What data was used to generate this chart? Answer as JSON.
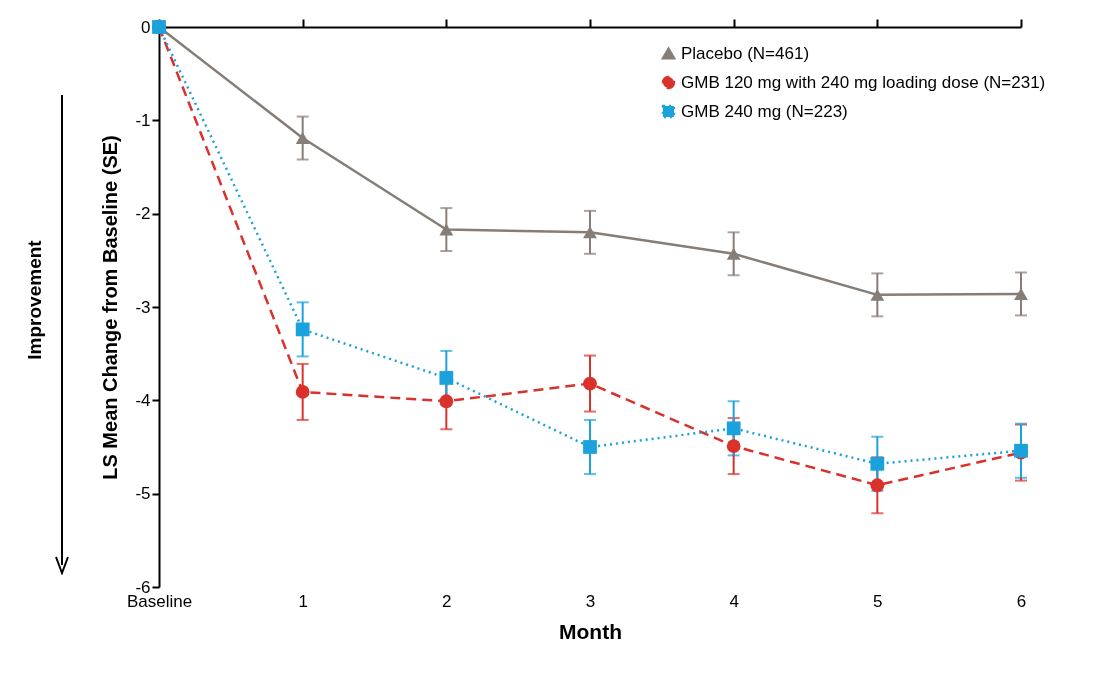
{
  "chart_data": {
    "type": "line",
    "xlabel": "Month",
    "ylabel": "LS Mean Change from Baseline (SE)",
    "categories": [
      "Baseline",
      "1",
      "2",
      "3",
      "4",
      "5",
      "6"
    ],
    "series": [
      {
        "name": "Placebo (N=461)",
        "color": "#857d76",
        "marker": "triangle",
        "line_style": "solid",
        "values": [
          0,
          -1.19,
          -2.17,
          -2.2,
          -2.43,
          -2.87,
          -2.86
        ],
        "errors": [
          null,
          0.23,
          0.23,
          0.23,
          0.23,
          0.23,
          0.23
        ]
      },
      {
        "name": "GMB 120 mg with 240 mg loading dose (N=231)",
        "color": "#d9312b",
        "marker": "circle",
        "line_style": "dashed",
        "values": [
          0,
          -3.91,
          -4.01,
          -3.82,
          -4.49,
          -4.91,
          -4.56
        ],
        "errors": [
          null,
          0.3,
          0.3,
          0.3,
          0.3,
          0.3,
          0.3
        ]
      },
      {
        "name": "GMB 240 mg (N=223)",
        "color": "#1ba1dc",
        "marker": "square",
        "line_style": "dotted",
        "values": [
          0,
          -3.24,
          -3.76,
          -4.5,
          -4.3,
          -4.68,
          -4.54
        ],
        "errors": [
          null,
          0.29,
          0.29,
          0.29,
          0.29,
          0.29,
          0.29
        ]
      }
    ],
    "ylim": [
      -6,
      0
    ],
    "yticks": [
      0,
      -1,
      -2,
      -3,
      -4,
      -5,
      -6
    ],
    "legend": "top right",
    "annotations": [
      "Improvement"
    ]
  }
}
